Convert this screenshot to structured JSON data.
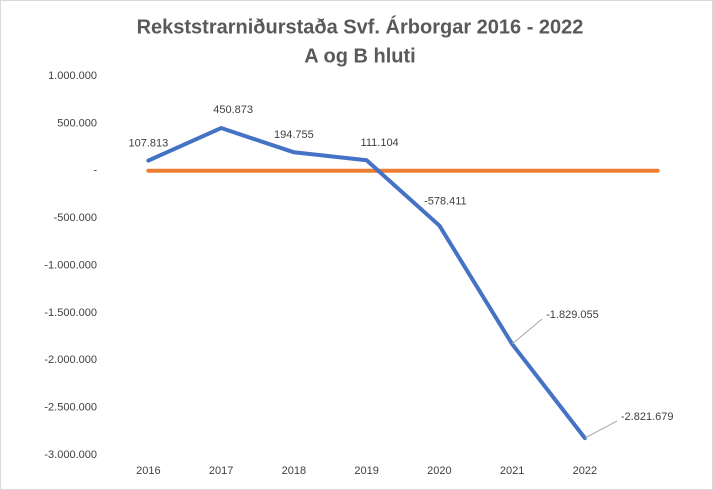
{
  "chart_data": {
    "type": "line",
    "title": "Rekststrarniðurstaða Svf. Árborgar 2016 - 2022",
    "subtitle": "A og B hluti",
    "categories": [
      "2016",
      "2017",
      "2018",
      "2019",
      "2020",
      "2021",
      "2022",
      null
    ],
    "series": [
      {
        "color": "#4472c4",
        "values": [
          107813,
          450873,
          194755,
          111104,
          -578411,
          -1829055,
          -2821679,
          null
        ],
        "value_labels": [
          "107.813",
          "450.873",
          "194.755",
          "111.104",
          "-578.411",
          "-1.829.055",
          "-2.821.679",
          null
        ]
      },
      {
        "color": "#ed7d31",
        "values": [
          0,
          0,
          0,
          0,
          0,
          0,
          0,
          0
        ]
      }
    ],
    "ylim": [
      -3000000,
      1000000
    ],
    "yticks": [
      {
        "value": 1000000,
        "label": "1.000.000"
      },
      {
        "value": 500000,
        "label": "500.000"
      },
      {
        "value": 0,
        "label": "-"
      },
      {
        "value": -500000,
        "label": "-500.000"
      },
      {
        "value": -1000000,
        "label": "-1.000.000"
      },
      {
        "value": -1500000,
        "label": "-1.500.000"
      },
      {
        "value": -2000000,
        "label": "-2.000.000"
      },
      {
        "value": -2500000,
        "label": "-2.500.000"
      },
      {
        "value": -3000000,
        "label": "-3.000.000"
      }
    ],
    "grid": false
  }
}
